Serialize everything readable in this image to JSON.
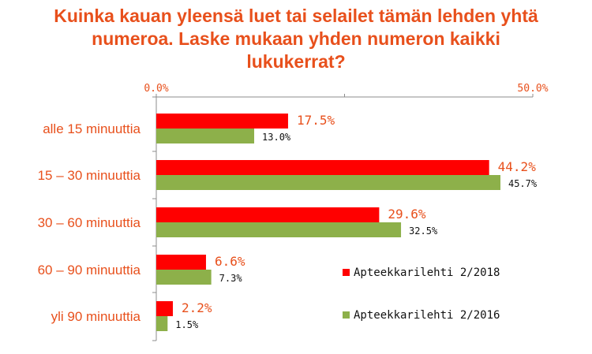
{
  "chart_data": {
    "type": "bar",
    "orientation": "horizontal",
    "title": "Kuinka kauan yleensä luet tai selailet tämän lehden yhtä numeroa. Laske mukaan yhden numeron kaikki lukukerrat?",
    "categories": [
      "alle 15 minuuttia",
      "15 – 30 minuuttia",
      "30 – 60 minuuttia",
      "60 – 90 minuuttia",
      "yli 90 minuuttia"
    ],
    "series": [
      {
        "name": "Apteekkarilehti 2/2018",
        "color": "#FF0000",
        "values": [
          17.5,
          44.2,
          29.6,
          6.6,
          2.2
        ],
        "labels": [
          "17.5%",
          "44.2%",
          "29.6%",
          "6.6%",
          "2.2%"
        ]
      },
      {
        "name": "Apteekkarilehti 2/2016",
        "color": "#8DB04A",
        "values": [
          13.0,
          45.7,
          32.5,
          7.3,
          1.5
        ],
        "labels": [
          "13.0%",
          "45.7%",
          "32.5%",
          "7.3%",
          "1.5%"
        ]
      }
    ],
    "x_ticks": [
      "0.0%",
      "50.0%"
    ],
    "xlim": [
      0,
      50
    ],
    "axis_position": "top",
    "grid": false,
    "legend_position": "bottom-right"
  }
}
